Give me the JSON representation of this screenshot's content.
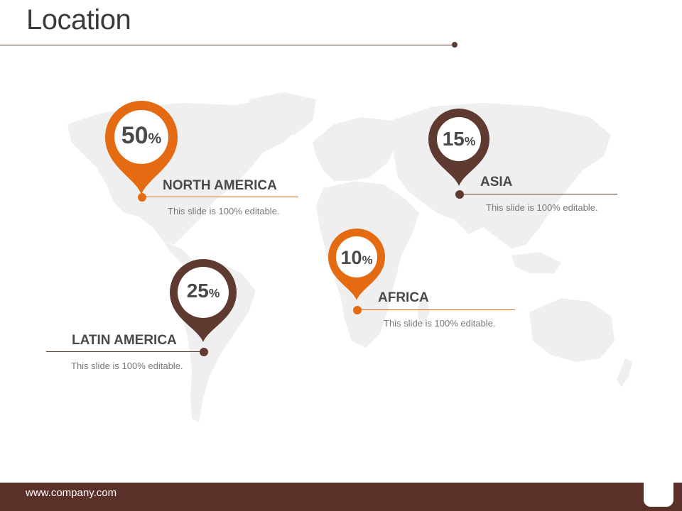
{
  "slide": {
    "title": "Location",
    "footer_url": "www.company.com"
  },
  "colors": {
    "orange": "#e56b12",
    "brown": "#5e3a30",
    "map": "#efefef"
  },
  "markers": [
    {
      "id": "north-america",
      "value": "50",
      "unit": "%",
      "region": "NORTH AMERICA",
      "description": "This slide is 100% editable.",
      "color": "orange"
    },
    {
      "id": "asia",
      "value": "15",
      "unit": "%",
      "region": "ASIA",
      "description": "This slide is 100% editable.",
      "color": "brown"
    },
    {
      "id": "africa",
      "value": "10",
      "unit": "%",
      "region": "AFRICA",
      "description": "This slide is 100% editable.",
      "color": "orange"
    },
    {
      "id": "latin-america",
      "value": "25",
      "unit": "%",
      "region": "LATIN AMERICA",
      "description": "This slide is 100% editable.",
      "color": "brown"
    }
  ]
}
